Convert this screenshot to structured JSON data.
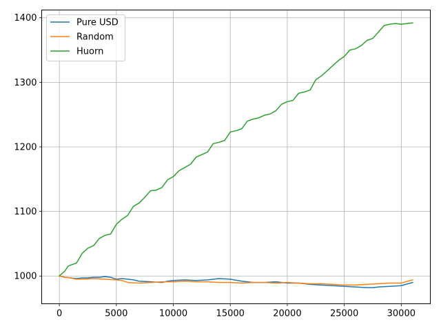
{
  "chart_data": {
    "type": "line",
    "title": "",
    "xlabel": "",
    "ylabel": "",
    "xlim": [
      -1550,
      32550
    ],
    "ylim": [
      957,
      1412
    ],
    "grid": true,
    "legend": "top-left",
    "x_ticks": [
      0,
      5000,
      10000,
      15000,
      20000,
      25000,
      30000
    ],
    "y_ticks": [
      1000,
      1100,
      1200,
      1300,
      1400
    ],
    "series": [
      {
        "name": "Pure USD",
        "color": "#1f77b4",
        "x": [
          0,
          500,
          1000,
          1500,
          2000,
          2500,
          3000,
          3500,
          4000,
          4500,
          5000,
          5500,
          6000,
          6500,
          7000,
          8000,
          9000,
          9500,
          10000,
          11000,
          12000,
          13000,
          14000,
          15000,
          16000,
          17000,
          18000,
          19000,
          20000,
          21000,
          22000,
          23000,
          24000,
          25000,
          26000,
          27000,
          27500,
          28000,
          29000,
          30000,
          31000
        ],
        "y": [
          1000,
          998,
          997,
          996,
          997,
          997,
          998,
          998,
          999,
          998,
          995,
          996,
          995,
          994,
          992,
          991,
          990,
          992,
          993,
          994,
          993,
          994,
          996,
          995,
          992,
          990,
          990,
          991,
          989,
          989,
          987,
          986,
          985,
          984,
          983,
          982,
          982,
          983,
          984,
          985,
          990
        ]
      },
      {
        "name": "Random",
        "color": "#ff7f0e",
        "x": [
          0,
          500,
          1000,
          1500,
          2000,
          3000,
          4000,
          5000,
          5500,
          6000,
          7000,
          8000,
          9000,
          10000,
          11000,
          12000,
          13000,
          14000,
          15000,
          16000,
          17000,
          18000,
          19000,
          20000,
          21000,
          22000,
          23000,
          24000,
          25000,
          26000,
          27000,
          28000,
          29000,
          30000,
          31000
        ],
        "y": [
          1000,
          998,
          997,
          995,
          995,
          996,
          995,
          994,
          993,
          990,
          989,
          990,
          991,
          991,
          992,
          991,
          991,
          990,
          990,
          989,
          990,
          990,
          989,
          990,
          989,
          988,
          988,
          987,
          986,
          986,
          987,
          988,
          989,
          989,
          994
        ]
      },
      {
        "name": "Huorn",
        "color": "#2ca02c",
        "x": [
          0,
          250,
          500,
          750,
          1000,
          1500,
          2000,
          2500,
          3000,
          3500,
          4000,
          4500,
          5000,
          5500,
          6000,
          6500,
          7000,
          7500,
          8000,
          8500,
          9000,
          9500,
          10000,
          10500,
          11000,
          11500,
          12000,
          12500,
          13000,
          13500,
          14000,
          14500,
          15000,
          15500,
          16000,
          16500,
          17000,
          17500,
          18000,
          18500,
          19000,
          19500,
          20000,
          20500,
          21000,
          21500,
          22000,
          22500,
          23000,
          23500,
          24000,
          24500,
          25000,
          25500,
          26000,
          26500,
          27000,
          27500,
          28000,
          28500,
          29000,
          29500,
          30000,
          30500,
          31000
        ],
        "y": [
          1000,
          1004,
          1008,
          1015,
          1017,
          1020,
          1035,
          1043,
          1047,
          1058,
          1063,
          1065,
          1080,
          1088,
          1094,
          1108,
          1113,
          1122,
          1132,
          1133,
          1137,
          1149,
          1154,
          1163,
          1168,
          1173,
          1184,
          1188,
          1192,
          1205,
          1207,
          1210,
          1223,
          1225,
          1228,
          1240,
          1243,
          1245,
          1249,
          1251,
          1256,
          1266,
          1270,
          1272,
          1283,
          1285,
          1288,
          1304,
          1310,
          1318,
          1326,
          1334,
          1340,
          1350,
          1352,
          1357,
          1365,
          1368,
          1378,
          1388,
          1390,
          1391,
          1390,
          1391,
          1392
        ]
      }
    ]
  }
}
